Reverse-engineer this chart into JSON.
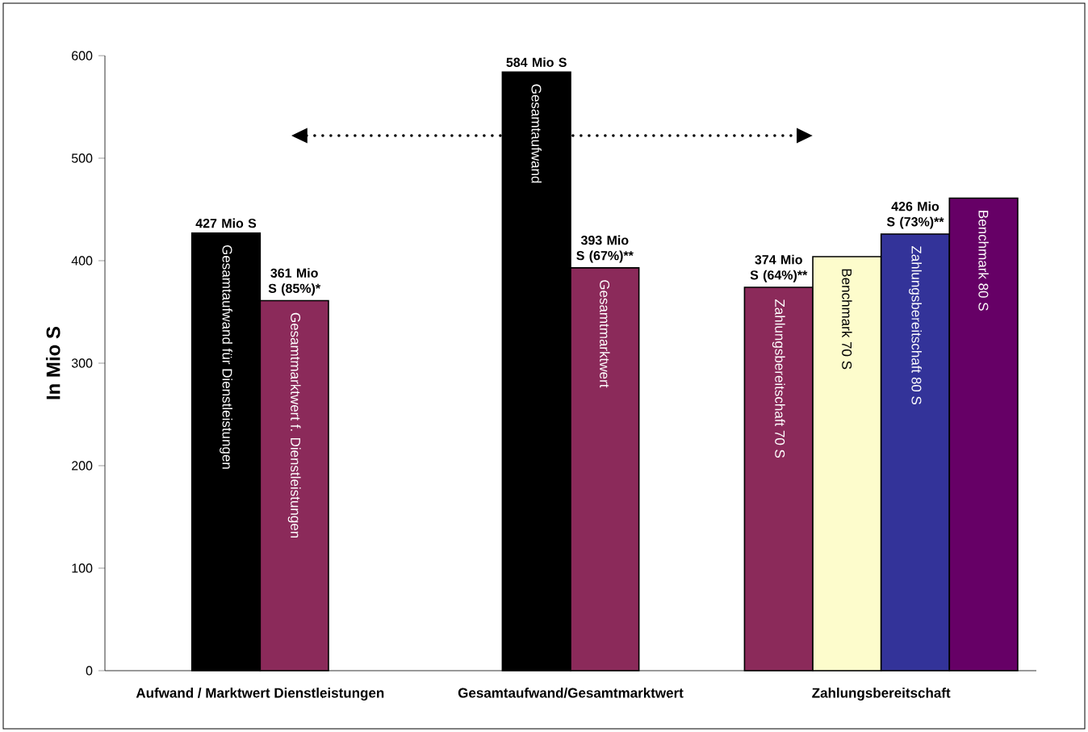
{
  "chart_data": {
    "type": "bar",
    "ylabel": "In Mio S",
    "categories": [
      "Aufwand / Marktwert Dienstleistungen",
      "Gesamtaufwand/Gesamtmarktwert",
      "Zahlungsbereitschaft"
    ],
    "series": [
      {
        "name": "Gesamtaufwand für Dienstleistungen",
        "color": "#000000",
        "values": [
          427,
          null,
          null
        ],
        "value_labels": [
          "427 Mio S",
          null,
          null
        ]
      },
      {
        "name": "Gesamtmarktwert f. Dienstleistungen",
        "color": "#8b2a5a",
        "values": [
          361,
          null,
          null
        ],
        "value_labels": [
          "361 Mio S (85%)*",
          null,
          null
        ]
      },
      {
        "name": "Gesamtaufwand",
        "color": "#000000",
        "values": [
          null,
          584,
          null
        ],
        "value_labels": [
          null,
          "584 Mio S",
          null
        ]
      },
      {
        "name": "Gesamtmarktwert",
        "color": "#8b2a5a",
        "values": [
          null,
          393,
          null
        ],
        "value_labels": [
          null,
          "393 Mio S (67%)**",
          null
        ]
      },
      {
        "name": "Zahlungsbereitschaft 70 S",
        "color": "#8b2a5a",
        "values": [
          null,
          null,
          374
        ],
        "value_labels": [
          null,
          null,
          "374 Mio S (64%)**"
        ]
      },
      {
        "name": "Benchmark 70 S",
        "color": "#fdfccc",
        "values": [
          null,
          null,
          404
        ]
      },
      {
        "name": "Zahlungsbereitschaft 80 S",
        "color": "#333399",
        "values": [
          null,
          null,
          426
        ],
        "value_labels": [
          null,
          null,
          "426 Mio S (73%)**"
        ]
      },
      {
        "name": "Benchmark 80 S",
        "color": "#660066",
        "values": [
          null,
          null,
          461
        ]
      }
    ],
    "ylim": [
      0,
      600
    ],
    "yticks": [
      0,
      100,
      200,
      300,
      400,
      500,
      600
    ],
    "grid": false
  }
}
